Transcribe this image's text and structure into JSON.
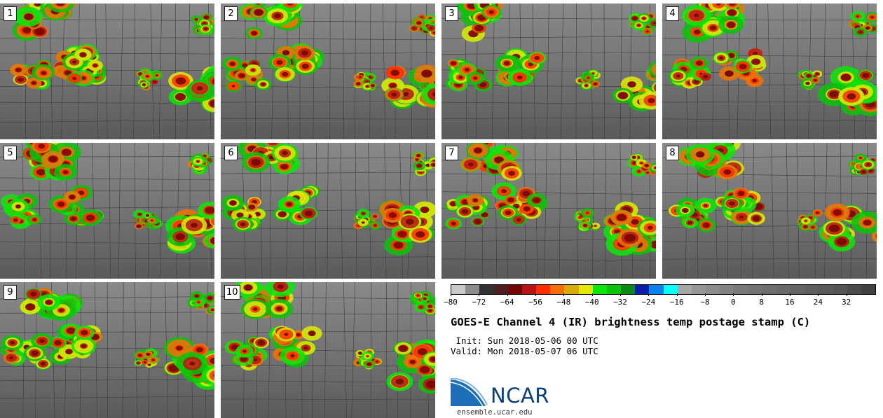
{
  "panels": [
    {
      "label": "1"
    },
    {
      "label": "2"
    },
    {
      "label": "3"
    },
    {
      "label": "4"
    },
    {
      "label": "5"
    },
    {
      "label": "6"
    },
    {
      "label": "7"
    },
    {
      "label": "8"
    },
    {
      "label": "9"
    },
    {
      "label": "10"
    }
  ],
  "colorbar": {
    "colors": [
      "#c8c8c8",
      "#8c8c8c",
      "#323232",
      "#501e1e",
      "#730505",
      "#b91414",
      "#ff2d00",
      "#f56e0a",
      "#d7aa0a",
      "#e6e60a",
      "#0ae60a",
      "#0ac30a",
      "#0a8c14",
      "#0a1eaa",
      "#0a82f0",
      "#0affff",
      "#a5a5a5",
      "#969696",
      "#8c8c8c",
      "#828282",
      "#787878",
      "#737373",
      "#6e6e6e",
      "#696969",
      "#646464",
      "#5f5f5f",
      "#5a5a5a",
      "#555555",
      "#4b4b4b",
      "#414141"
    ],
    "ticks": [
      "−80",
      "−72",
      "−64",
      "−56",
      "−48",
      "−40",
      "−32",
      "−24",
      "−16",
      "−8",
      "0",
      "8",
      "16",
      "24",
      "32"
    ]
  },
  "title": "GOES-E Channel 4 (IR) brightness temp postage stamp (C)",
  "init": " Init: Sun 2018-05-06 00 UTC",
  "valid": "Valid: Mon 2018-05-07 06 UTC",
  "logo": {
    "name": "NCAR",
    "url": "ensemble.ucar.edu"
  }
}
